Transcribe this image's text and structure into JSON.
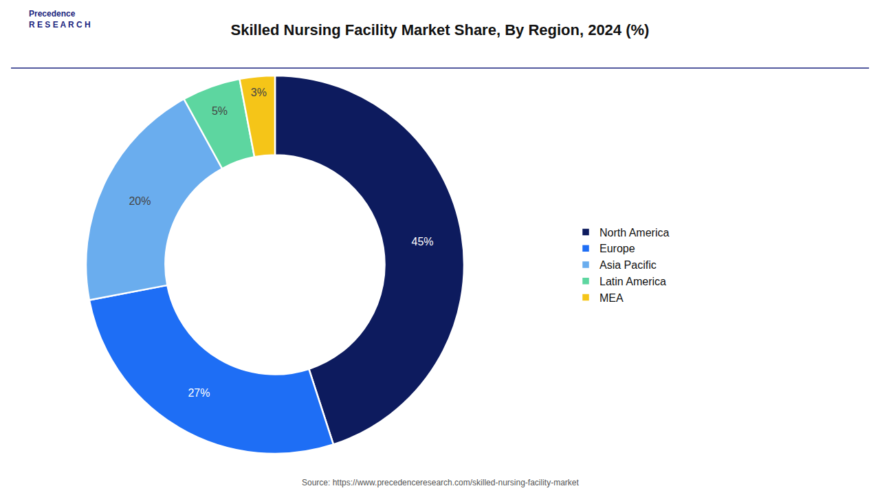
{
  "chart_data": {
    "type": "pie",
    "title": "Skilled Nursing Facility Market Share, By Region, 2024 (%)",
    "categories": [
      "North America",
      "Europe",
      "Asia Pacific",
      "Latin America",
      "MEA"
    ],
    "values": [
      45,
      27,
      20,
      5,
      3
    ],
    "value_labels": [
      "45%",
      "27%",
      "20%",
      "5%",
      "3%"
    ],
    "colors": [
      "#0d1b5e",
      "#1e6ef5",
      "#6aadee",
      "#5dd6a0",
      "#f5c518"
    ],
    "data_labels": true,
    "legend": "right",
    "annotations": [
      "Precedence\nR E S E A R C H",
      "Source: https://www.precedenceresearch.com/skilled-nursing-facility-market"
    ]
  }
}
